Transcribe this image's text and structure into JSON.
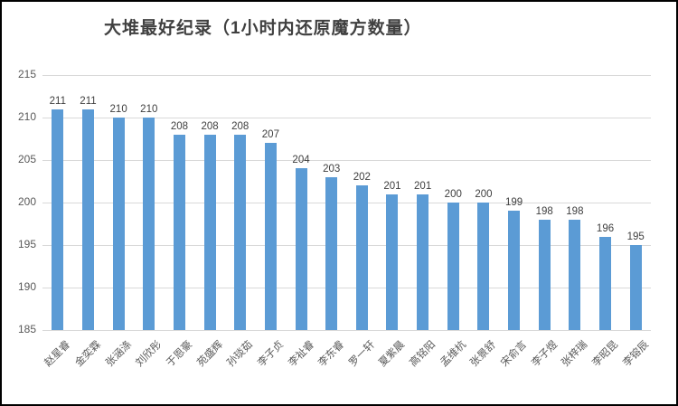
{
  "title": "大堆最好纪录（1小时内还原魔方数量）",
  "colors": {
    "bar": "#5b9bd5",
    "gridline": "#d9d9d9",
    "value_label": "#404040",
    "axis_text": "#595959",
    "title_text": "#404040",
    "frame_border": "#000000",
    "background": "#ffffff"
  },
  "chart_data": {
    "type": "bar",
    "title": "大堆最好纪录（1小时内还原魔方数量）",
    "categories": [
      "赵星睿",
      "金奕霖",
      "张涵涤",
      "刘欣彤",
      "于恩豪",
      "苑盛辉",
      "孙琰茹",
      "李子贞",
      "李祉睿",
      "李东睿",
      "罗一轩",
      "夏紫晨",
      "高铭阳",
      "孟维杭",
      "张景舒",
      "宋俞言",
      "李子煜",
      "张梓瑞",
      "李昭昆",
      "李镕辰"
    ],
    "values": [
      211,
      211,
      210,
      210,
      208,
      208,
      208,
      207,
      204,
      203,
      202,
      201,
      201,
      200,
      200,
      199,
      198,
      198,
      196,
      195
    ],
    "xlabel": "",
    "ylabel": "",
    "ylim": [
      185,
      215
    ],
    "yticks": [
      185,
      190,
      195,
      200,
      205,
      210,
      215
    ],
    "grid": true,
    "legend_position": "none",
    "data_labels": true
  }
}
